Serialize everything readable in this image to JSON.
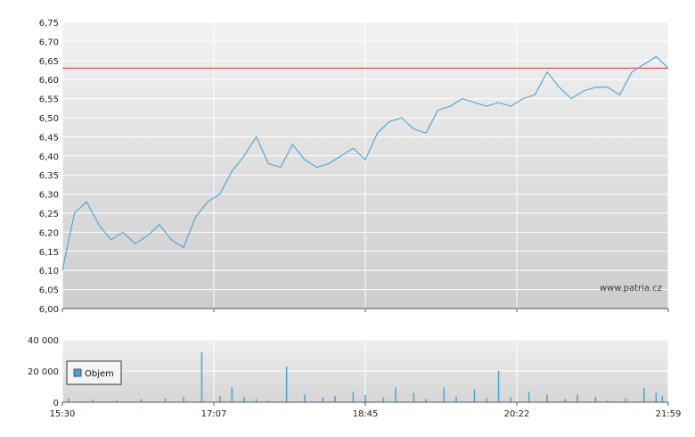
{
  "watermark": "www.patria.cz",
  "chart_data": [
    {
      "type": "line",
      "name": "price",
      "ylim": [
        6.0,
        6.75
      ],
      "y_ticks": [
        "6,00",
        "6,05",
        "6,10",
        "6,15",
        "6,20",
        "6,25",
        "6,30",
        "6,35",
        "6,40",
        "6,45",
        "6,50",
        "6,55",
        "6,60",
        "6,65",
        "6,70",
        "6,75"
      ],
      "x_ticks": [
        "15:30",
        "17:07",
        "18:45",
        "20:22",
        "21:59"
      ],
      "reference_line": {
        "value": 6.63,
        "color": "#e03030"
      },
      "line_color": "#4aa3d8",
      "grid": true,
      "x": [
        0,
        2,
        4,
        6,
        8,
        10,
        12,
        14,
        16,
        18,
        20,
        22,
        24,
        26,
        28,
        30,
        32,
        34,
        36,
        38,
        40,
        42,
        44,
        46,
        48,
        50,
        52,
        54,
        56,
        58,
        60,
        62,
        64,
        66,
        68,
        70,
        72,
        74,
        76,
        78,
        80,
        82,
        84,
        86,
        88,
        90,
        92,
        94,
        96,
        98,
        100
      ],
      "values": [
        6.1,
        6.25,
        6.28,
        6.22,
        6.18,
        6.2,
        6.17,
        6.19,
        6.22,
        6.18,
        6.16,
        6.24,
        6.28,
        6.3,
        6.36,
        6.4,
        6.45,
        6.38,
        6.37,
        6.43,
        6.39,
        6.37,
        6.38,
        6.4,
        6.42,
        6.39,
        6.46,
        6.49,
        6.5,
        6.47,
        6.46,
        6.52,
        6.53,
        6.55,
        6.54,
        6.53,
        6.54,
        6.53,
        6.55,
        6.56,
        6.62,
        6.58,
        6.55,
        6.57,
        6.58,
        6.58,
        6.56,
        6.62,
        6.64,
        6.66,
        6.63
      ]
    },
    {
      "type": "bar",
      "name": "volume",
      "ylim": [
        0,
        40000
      ],
      "y_ticks": [
        "0",
        "20 000",
        "40 000"
      ],
      "x_ticks": [
        "15:30",
        "17:07",
        "18:45",
        "20:22",
        "21:59"
      ],
      "legend": [
        "Objem"
      ],
      "bar_color": "#4aa3d8",
      "x": [
        1,
        5,
        9,
        13,
        17,
        20,
        23,
        26,
        28,
        30,
        32,
        34,
        37,
        40,
        43,
        45,
        48,
        50,
        53,
        55,
        58,
        60,
        63,
        65,
        68,
        70,
        72,
        74,
        77,
        80,
        83,
        85,
        88,
        90,
        93,
        96,
        98,
        99
      ],
      "values": [
        2500,
        1500,
        1000,
        2000,
        2500,
        3500,
        32000,
        4000,
        9500,
        3500,
        2000,
        1000,
        23000,
        5000,
        3000,
        4000,
        6500,
        4500,
        3000,
        9500,
        6000,
        2000,
        9500,
        3500,
        8000,
        2500,
        20000,
        3000,
        6500,
        5000,
        2000,
        5000,
        3500,
        1000,
        2500,
        9000,
        6000,
        4000
      ]
    }
  ]
}
